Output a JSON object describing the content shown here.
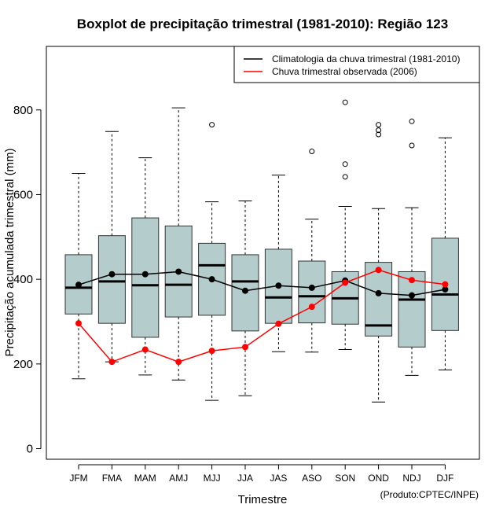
{
  "chart_data": {
    "type": "boxplot",
    "title": "Boxplot de precipitação trimestral (1981-2010): Região 123",
    "xlabel": "Trimestre",
    "ylabel": "Precipitação acumulada trimestral (mm)",
    "credit": "(Produto:CPTEC/INPE)",
    "ylim": [
      -25,
      950
    ],
    "yticks": [
      0,
      200,
      400,
      600,
      800
    ],
    "categories": [
      "JFM",
      "FMA",
      "MAM",
      "AMJ",
      "MJJ",
      "JJA",
      "JAS",
      "ASO",
      "SON",
      "OND",
      "NDJ",
      "DJF"
    ],
    "box_color": "#b5cccc",
    "boxes": [
      {
        "min": 165,
        "q1": 318,
        "median": 380,
        "q3": 458,
        "max": 650,
        "outliers": []
      },
      {
        "min": 205,
        "q1": 296,
        "median": 395,
        "q3": 503,
        "max": 749,
        "outliers": []
      },
      {
        "min": 174,
        "q1": 263,
        "median": 386,
        "q3": 545,
        "max": 687,
        "outliers": []
      },
      {
        "min": 162,
        "q1": 311,
        "median": 387,
        "q3": 526,
        "max": 805,
        "outliers": []
      },
      {
        "min": 114,
        "q1": 315,
        "median": 433,
        "q3": 485,
        "max": 583,
        "outliers": [
          765
        ]
      },
      {
        "min": 125,
        "q1": 278,
        "median": 395,
        "q3": 458,
        "max": 585,
        "outliers": []
      },
      {
        "min": 229,
        "q1": 296,
        "median": 357,
        "q3": 471,
        "max": 646,
        "outliers": []
      },
      {
        "min": 228,
        "q1": 297,
        "median": 360,
        "q3": 443,
        "max": 542,
        "outliers": [
          702
        ]
      },
      {
        "min": 234,
        "q1": 294,
        "median": 355,
        "q3": 418,
        "max": 572,
        "outliers": [
          642,
          672,
          818
        ]
      },
      {
        "min": 110,
        "q1": 266,
        "median": 291,
        "q3": 440,
        "max": 567,
        "outliers": [
          742,
          752,
          765
        ]
      },
      {
        "min": 173,
        "q1": 240,
        "median": 352,
        "q3": 418,
        "max": 569,
        "outliers": [
          716,
          773
        ]
      },
      {
        "min": 186,
        "q1": 279,
        "median": 364,
        "q3": 497,
        "max": 734,
        "outliers": []
      }
    ],
    "series": [
      {
        "name": "Climatologia da chuva trimestral (1981-2010)",
        "color": "#000000",
        "values": [
          387,
          412,
          412,
          418,
          400,
          373,
          385,
          380,
          397,
          367,
          362,
          376
        ]
      },
      {
        "name": "Chuva trimestral observada (2006)",
        "color": "#ff0000",
        "values": [
          296,
          205,
          234,
          205,
          231,
          240,
          295,
          335,
          392,
          422,
          398,
          388
        ]
      }
    ],
    "legend_position": "top-right"
  }
}
